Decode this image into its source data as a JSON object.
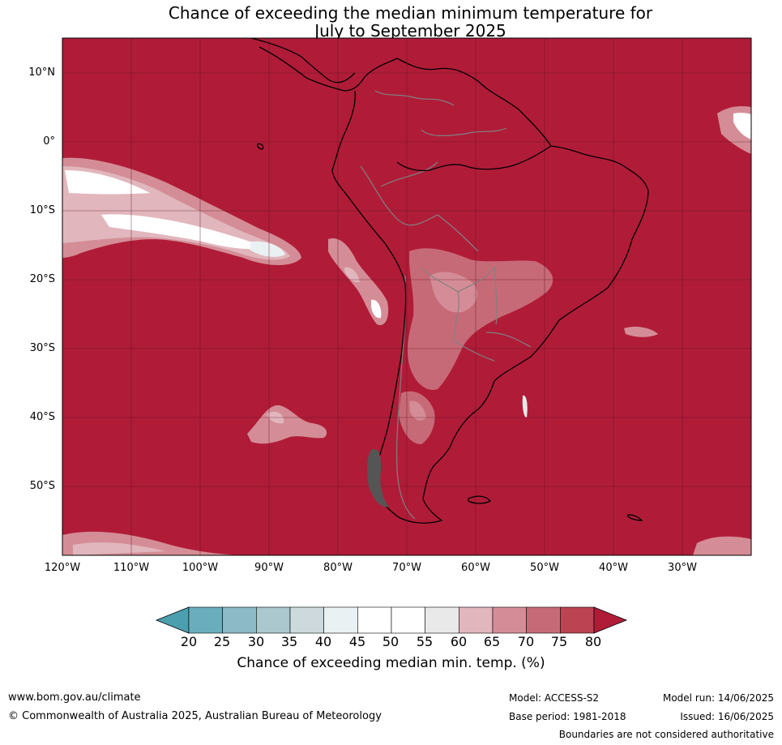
{
  "title": {
    "line1": "Chance of exceeding the median minimum temperature for",
    "line2": "July to September 2025"
  },
  "map": {
    "background_color": "#B01C38",
    "coast_color": "#000000",
    "border_color": "#808080",
    "grid_color": "#5a1020",
    "latitude_labels": [
      "10°N",
      "0°",
      "10°S",
      "20°S",
      "30°S",
      "40°S",
      "50°S"
    ],
    "longitude_labels": [
      "120°W",
      "110°W",
      "100°W",
      "90°W",
      "80°W",
      "70°W",
      "60°W",
      "50°W",
      "40°W",
      "30°W"
    ]
  },
  "colorbar": {
    "ticks": [
      "20",
      "25",
      "30",
      "35",
      "40",
      "45",
      "50",
      "55",
      "60",
      "65",
      "70",
      "75",
      "80"
    ],
    "colors": [
      "#4C9FAF",
      "#6AAEBE",
      "#8CBAC6",
      "#AAC8CE",
      "#CDD9DC",
      "#EAF1F3",
      "#FFFFFF",
      "#FFFFFF",
      "#E9E9E9",
      "#E1B6BD",
      "#D48D96",
      "#C76A77",
      "#BC4352",
      "#B01C38"
    ],
    "label": "Chance of exceeding median min. temp. (%)"
  },
  "footer": {
    "website": "www.bom.gov.au/climate",
    "copyright": "© Commonwealth of Australia 2025, Australian Bureau of Meteorology",
    "model": "Model: ACCESS-S2",
    "base_period": "Base period: 1981-2018",
    "model_run": "Model run: 14/06/2025",
    "issued": "Issued: 16/06/2025",
    "disclaimer": "Boundaries are not considered authoritative"
  }
}
